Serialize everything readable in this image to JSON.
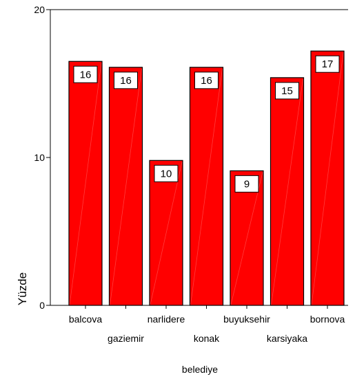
{
  "chart_data": {
    "type": "bar",
    "categories": [
      "balcova",
      "gaziemir",
      "narlidere",
      "konak",
      "buyuksehir",
      "karsiyaka",
      "bornova"
    ],
    "values": [
      16.5,
      16.1,
      9.8,
      16.1,
      9.1,
      15.4,
      17.2
    ],
    "data_labels": [
      "16",
      "16",
      "10",
      "16",
      "9",
      "15",
      "17"
    ],
    "xlabel": "belediye",
    "ylabel": "Yüzde",
    "ylim": [
      0,
      20
    ],
    "yticks": [
      "0",
      "10",
      "20"
    ],
    "grid": false,
    "bar_color": "#ff0000",
    "bar_border_color": "#000000"
  }
}
